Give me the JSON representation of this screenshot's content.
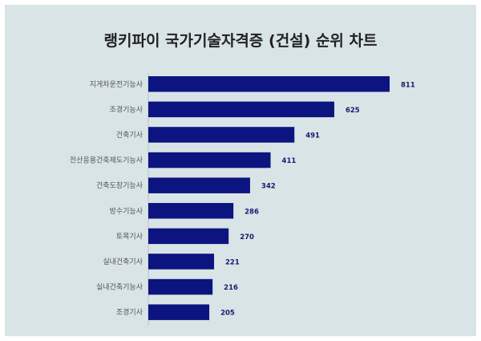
{
  "chart_data": {
    "type": "bar",
    "orientation": "horizontal",
    "title": "랭키파이 국가기술자격증 (건설) 순위 차트",
    "categories": [
      "지게차운전기능사",
      "조경기능사",
      "건축기사",
      "전산응용건축제도기능사",
      "건축도장기능사",
      "방수기능사",
      "토목기사",
      "실내건축기사",
      "실내건축기능사",
      "조경기사"
    ],
    "values": [
      811,
      625,
      491,
      411,
      342,
      286,
      270,
      221,
      216,
      205
    ],
    "xlim": [
      0,
      811
    ],
    "grid": false,
    "colors": {
      "bar": "#0c1480",
      "background": "#d9e4e6",
      "value_label": "#1a1a6e"
    }
  }
}
